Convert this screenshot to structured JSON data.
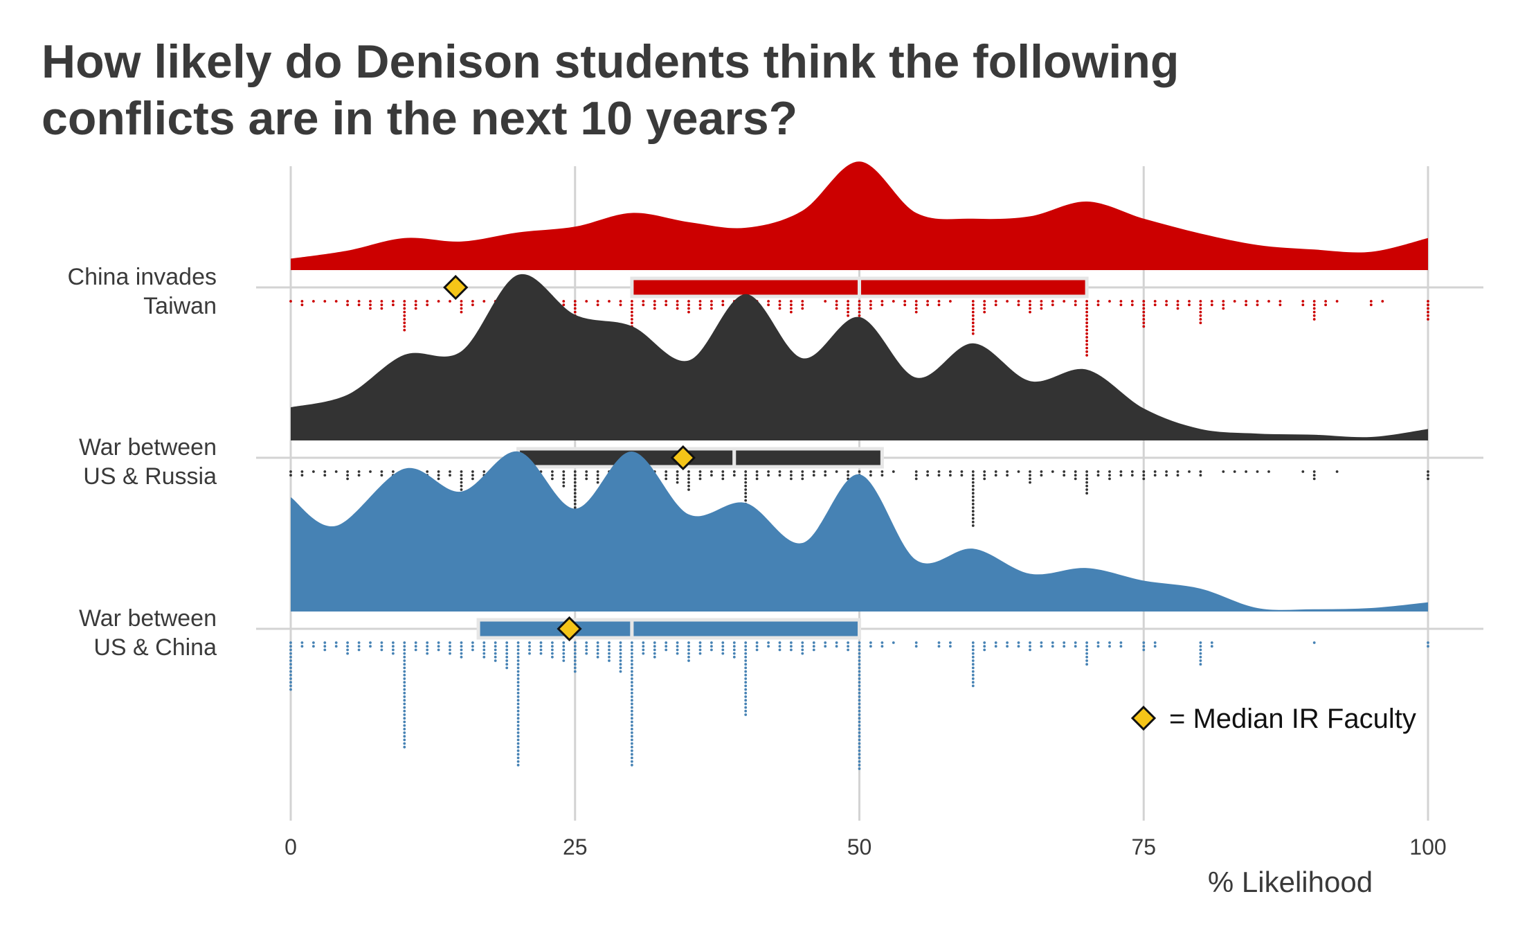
{
  "chart_data": {
    "type": "raincloud",
    "title": "How likely do Denison students think the following conflicts are in the next 10 years?",
    "xlabel": "% Likelihood",
    "xlim": [
      0,
      100
    ],
    "xticks": [
      0,
      25,
      50,
      75,
      100
    ],
    "grid": true,
    "legend": {
      "placement": "bottom-right",
      "label": "= Median IR Faculty",
      "marker": "diamond",
      "color": "#f5c518"
    },
    "series": [
      {
        "name": "China invades Taiwan",
        "label_lines": [
          "China invades",
          "Taiwan"
        ],
        "color": "#cc0000",
        "median_ir_faculty": 14.5,
        "box": {
          "q1": 30,
          "median": 50,
          "q3": 70
        },
        "density": [
          [
            0,
            0.1
          ],
          [
            5,
            0.17
          ],
          [
            10,
            0.28
          ],
          [
            15,
            0.25
          ],
          [
            20,
            0.33
          ],
          [
            25,
            0.38
          ],
          [
            30,
            0.5
          ],
          [
            35,
            0.42
          ],
          [
            40,
            0.37
          ],
          [
            45,
            0.52
          ],
          [
            50,
            0.95
          ],
          [
            55,
            0.5
          ],
          [
            60,
            0.45
          ],
          [
            65,
            0.47
          ],
          [
            70,
            0.6
          ],
          [
            75,
            0.45
          ],
          [
            80,
            0.32
          ],
          [
            85,
            0.22
          ],
          [
            90,
            0.18
          ],
          [
            95,
            0.16
          ],
          [
            100,
            0.28
          ]
        ],
        "dots": [
          [
            0,
            1
          ],
          [
            1,
            2
          ],
          [
            2,
            1
          ],
          [
            3,
            1
          ],
          [
            4,
            1
          ],
          [
            5,
            2
          ],
          [
            6,
            2
          ],
          [
            7,
            3
          ],
          [
            8,
            3
          ],
          [
            9,
            2
          ],
          [
            10,
            9
          ],
          [
            11,
            3
          ],
          [
            12,
            2
          ],
          [
            13,
            1
          ],
          [
            14,
            1
          ],
          [
            15,
            4
          ],
          [
            16,
            2
          ],
          [
            17,
            1
          ],
          [
            18,
            1
          ],
          [
            19,
            3
          ],
          [
            20,
            10
          ],
          [
            21,
            1
          ],
          [
            22,
            3
          ],
          [
            23,
            2
          ],
          [
            24,
            2
          ],
          [
            25,
            7
          ],
          [
            26,
            1
          ],
          [
            27,
            2
          ],
          [
            28,
            1
          ],
          [
            29,
            2
          ],
          [
            30,
            16
          ],
          [
            31,
            2
          ],
          [
            32,
            3
          ],
          [
            33,
            2
          ],
          [
            34,
            3
          ],
          [
            35,
            4
          ],
          [
            36,
            3
          ],
          [
            37,
            3
          ],
          [
            38,
            2
          ],
          [
            39,
            1
          ],
          [
            40,
            11
          ],
          [
            41,
            2
          ],
          [
            42,
            2
          ],
          [
            43,
            3
          ],
          [
            44,
            4
          ],
          [
            45,
            3
          ],
          [
            47,
            1
          ],
          [
            48,
            3
          ],
          [
            49,
            5
          ],
          [
            50,
            21
          ],
          [
            51,
            3
          ],
          [
            52,
            2
          ],
          [
            53,
            1
          ],
          [
            54,
            2
          ],
          [
            55,
            4
          ],
          [
            56,
            2
          ],
          [
            57,
            2
          ],
          [
            58,
            1
          ],
          [
            60,
            10
          ],
          [
            61,
            4
          ],
          [
            62,
            2
          ],
          [
            63,
            1
          ],
          [
            64,
            2
          ],
          [
            65,
            4
          ],
          [
            66,
            3
          ],
          [
            67,
            2
          ],
          [
            68,
            1
          ],
          [
            69,
            2
          ],
          [
            70,
            16
          ],
          [
            71,
            2
          ],
          [
            72,
            1
          ],
          [
            73,
            2
          ],
          [
            74,
            2
          ],
          [
            75,
            8
          ],
          [
            76,
            2
          ],
          [
            77,
            2
          ],
          [
            78,
            3
          ],
          [
            79,
            2
          ],
          [
            80,
            7
          ],
          [
            81,
            2
          ],
          [
            82,
            3
          ],
          [
            83,
            1
          ],
          [
            84,
            2
          ],
          [
            85,
            2
          ],
          [
            86,
            1
          ],
          [
            87,
            2
          ],
          [
            89,
            2
          ],
          [
            90,
            6
          ],
          [
            91,
            2
          ],
          [
            92,
            1
          ],
          [
            95,
            2
          ],
          [
            96,
            1
          ],
          [
            100,
            6
          ]
        ]
      },
      {
        "name": "War between US & Russia",
        "label_lines": [
          "War between",
          "US & Russia"
        ],
        "color": "#333333",
        "median_ir_faculty": 34.5,
        "box": {
          "q1": 20,
          "median": 39,
          "q3": 52
        },
        "density": [
          [
            0,
            0.29
          ],
          [
            5,
            0.4
          ],
          [
            10,
            0.75
          ],
          [
            15,
            0.78
          ],
          [
            20,
            1.45
          ],
          [
            25,
            1.1
          ],
          [
            30,
            1.0
          ],
          [
            35,
            0.7
          ],
          [
            40,
            1.28
          ],
          [
            45,
            0.72
          ],
          [
            50,
            1.08
          ],
          [
            55,
            0.55
          ],
          [
            60,
            0.85
          ],
          [
            65,
            0.52
          ],
          [
            70,
            0.62
          ],
          [
            75,
            0.28
          ],
          [
            80,
            0.1
          ],
          [
            85,
            0.06
          ],
          [
            90,
            0.05
          ],
          [
            95,
            0.03
          ],
          [
            100,
            0.1
          ]
        ],
        "dots": [
          [
            0,
            2
          ],
          [
            1,
            2
          ],
          [
            2,
            1
          ],
          [
            3,
            2
          ],
          [
            4,
            1
          ],
          [
            5,
            3
          ],
          [
            6,
            2
          ],
          [
            7,
            1
          ],
          [
            8,
            2
          ],
          [
            9,
            5
          ],
          [
            10,
            11
          ],
          [
            11,
            3
          ],
          [
            12,
            2
          ],
          [
            13,
            3
          ],
          [
            14,
            2
          ],
          [
            15,
            6
          ],
          [
            16,
            3
          ],
          [
            17,
            3
          ],
          [
            18,
            2
          ],
          [
            19,
            5
          ],
          [
            20,
            21
          ],
          [
            21,
            3
          ],
          [
            22,
            2
          ],
          [
            23,
            3
          ],
          [
            24,
            5
          ],
          [
            25,
            12
          ],
          [
            26,
            3
          ],
          [
            27,
            4
          ],
          [
            28,
            3
          ],
          [
            29,
            4
          ],
          [
            30,
            21
          ],
          [
            31,
            4
          ],
          [
            32,
            3
          ],
          [
            33,
            3
          ],
          [
            34,
            4
          ],
          [
            35,
            6
          ],
          [
            36,
            3
          ],
          [
            37,
            2
          ],
          [
            38,
            3
          ],
          [
            39,
            2
          ],
          [
            40,
            23
          ],
          [
            41,
            3
          ],
          [
            42,
            2
          ],
          [
            43,
            2
          ],
          [
            44,
            3
          ],
          [
            45,
            3
          ],
          [
            46,
            2
          ],
          [
            47,
            2
          ],
          [
            48,
            1
          ],
          [
            49,
            3
          ],
          [
            50,
            23
          ],
          [
            51,
            2
          ],
          [
            52,
            2
          ],
          [
            53,
            1
          ],
          [
            55,
            3
          ],
          [
            56,
            2
          ],
          [
            57,
            2
          ],
          [
            58,
            2
          ],
          [
            59,
            2
          ],
          [
            60,
            16
          ],
          [
            61,
            3
          ],
          [
            62,
            2
          ],
          [
            63,
            2
          ],
          [
            64,
            1
          ],
          [
            65,
            4
          ],
          [
            66,
            2
          ],
          [
            67,
            1
          ],
          [
            68,
            2
          ],
          [
            69,
            3
          ],
          [
            70,
            7
          ],
          [
            71,
            2
          ],
          [
            72,
            3
          ],
          [
            73,
            2
          ],
          [
            74,
            2
          ],
          [
            75,
            3
          ],
          [
            76,
            2
          ],
          [
            77,
            2
          ],
          [
            78,
            2
          ],
          [
            79,
            1
          ],
          [
            80,
            2
          ],
          [
            82,
            1
          ],
          [
            83,
            1
          ],
          [
            84,
            1
          ],
          [
            85,
            1
          ],
          [
            86,
            1
          ],
          [
            89,
            1
          ],
          [
            90,
            3
          ],
          [
            92,
            1
          ],
          [
            100,
            3
          ]
        ]
      },
      {
        "name": "War between US & China",
        "label_lines": [
          "War between",
          "US & China"
        ],
        "color": "#4682b4",
        "median_ir_faculty": 24.5,
        "box": {
          "q1": 16.5,
          "median": 30,
          "q3": 50
        },
        "density": [
          [
            0,
            1.0
          ],
          [
            4,
            0.75
          ],
          [
            10,
            1.25
          ],
          [
            15,
            1.05
          ],
          [
            20,
            1.4
          ],
          [
            25,
            0.9
          ],
          [
            30,
            1.4
          ],
          [
            35,
            0.85
          ],
          [
            40,
            0.95
          ],
          [
            45,
            0.6
          ],
          [
            50,
            1.2
          ],
          [
            55,
            0.45
          ],
          [
            60,
            0.55
          ],
          [
            65,
            0.33
          ],
          [
            70,
            0.38
          ],
          [
            75,
            0.27
          ],
          [
            80,
            0.2
          ],
          [
            85,
            0.03
          ],
          [
            90,
            0.02
          ],
          [
            95,
            0.03
          ],
          [
            100,
            0.08
          ]
        ],
        "dots": [
          [
            0,
            14
          ],
          [
            1,
            2
          ],
          [
            2,
            2
          ],
          [
            3,
            3
          ],
          [
            4,
            2
          ],
          [
            5,
            4
          ],
          [
            6,
            3
          ],
          [
            7,
            2
          ],
          [
            8,
            3
          ],
          [
            9,
            4
          ],
          [
            10,
            30
          ],
          [
            11,
            3
          ],
          [
            12,
            4
          ],
          [
            13,
            3
          ],
          [
            14,
            4
          ],
          [
            15,
            5
          ],
          [
            16,
            3
          ],
          [
            17,
            5
          ],
          [
            18,
            6
          ],
          [
            19,
            8
          ],
          [
            20,
            35
          ],
          [
            21,
            4
          ],
          [
            22,
            4
          ],
          [
            23,
            5
          ],
          [
            24,
            6
          ],
          [
            25,
            9
          ],
          [
            26,
            4
          ],
          [
            27,
            5
          ],
          [
            28,
            6
          ],
          [
            29,
            9
          ],
          [
            30,
            35
          ],
          [
            31,
            4
          ],
          [
            32,
            5
          ],
          [
            33,
            3
          ],
          [
            34,
            4
          ],
          [
            35,
            6
          ],
          [
            36,
            4
          ],
          [
            37,
            3
          ],
          [
            38,
            4
          ],
          [
            39,
            5
          ],
          [
            40,
            21
          ],
          [
            41,
            3
          ],
          [
            42,
            2
          ],
          [
            43,
            3
          ],
          [
            44,
            3
          ],
          [
            45,
            4
          ],
          [
            46,
            3
          ],
          [
            47,
            2
          ],
          [
            48,
            2
          ],
          [
            49,
            3
          ],
          [
            50,
            36
          ],
          [
            51,
            2
          ],
          [
            52,
            2
          ],
          [
            53,
            1
          ],
          [
            55,
            2
          ],
          [
            57,
            2
          ],
          [
            58,
            2
          ],
          [
            60,
            13
          ],
          [
            61,
            3
          ],
          [
            62,
            2
          ],
          [
            63,
            2
          ],
          [
            64,
            2
          ],
          [
            65,
            3
          ],
          [
            66,
            2
          ],
          [
            67,
            2
          ],
          [
            68,
            2
          ],
          [
            69,
            2
          ],
          [
            70,
            7
          ],
          [
            71,
            2
          ],
          [
            72,
            2
          ],
          [
            73,
            2
          ],
          [
            75,
            3
          ],
          [
            76,
            2
          ],
          [
            80,
            7
          ],
          [
            81,
            2
          ],
          [
            90,
            1
          ],
          [
            100,
            2
          ]
        ]
      }
    ]
  }
}
